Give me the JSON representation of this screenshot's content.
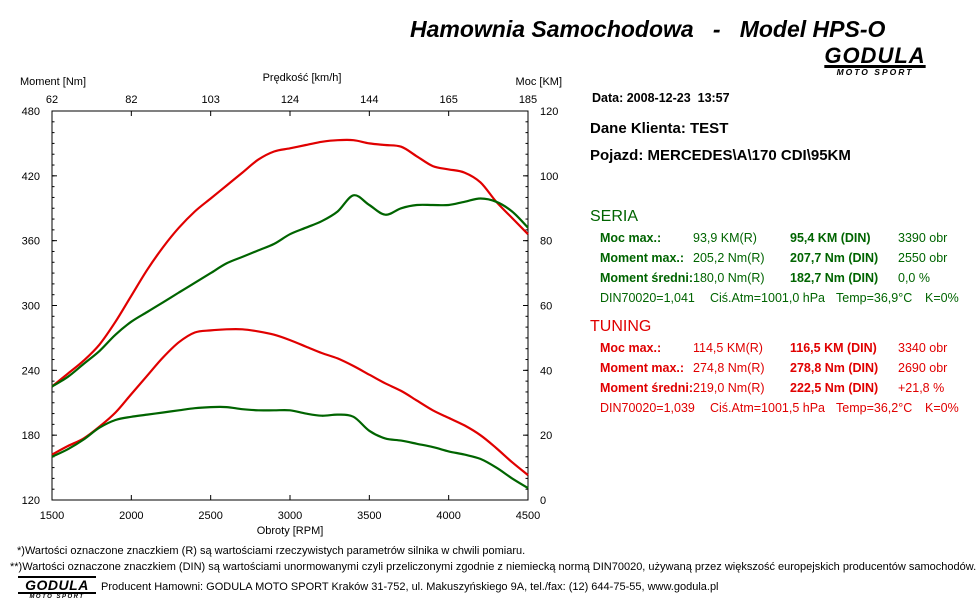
{
  "header": {
    "title": "Hamownia Samochodowa   -   Model HPS-O",
    "logo_brand": "GODULA",
    "logo_sub": "MOTO SPORT"
  },
  "info": {
    "date": "Data: 2008-12-23  13:57",
    "client": "Dane Klienta: TEST",
    "vehicle": "Pojazd: MERCEDES\\A\\170 CDI\\95KM"
  },
  "sections": {
    "seria": {
      "title": "SERIA",
      "color": "#006400",
      "rows": [
        {
          "label": "Moc max.:",
          "r": "93,9 KM(R)",
          "din": "95,4 KM (DIN)",
          "rpm": "3390 obr"
        },
        {
          "label": "Moment max.:",
          "r": "205,2 Nm(R)",
          "din": "207,7 Nm (DIN)",
          "rpm": "2550 obr"
        },
        {
          "label": "Moment średni:",
          "r": "180,0 Nm(R)",
          "din": "182,7 Nm (DIN)",
          "rpm": "0,0 %"
        }
      ],
      "conditions": {
        "din": "DIN70020=1,041",
        "atm": "Ciś.Atm=1001,0 hPa",
        "temp": "Temp=36,9°C",
        "k": "K=0%"
      }
    },
    "tuning": {
      "title": "TUNING",
      "color": "#e00000",
      "rows": [
        {
          "label": "Moc max.:",
          "r": "114,5 KM(R)",
          "din": "116,5 KM (DIN)",
          "rpm": "3340 obr"
        },
        {
          "label": "Moment max.:",
          "r": "274,8 Nm(R)",
          "din": "278,8 Nm (DIN)",
          "rpm": "2690 obr"
        },
        {
          "label": "Moment średni:",
          "r": "219,0 Nm(R)",
          "din": "222,5 Nm (DIN)",
          "rpm": "+21,8 %"
        }
      ],
      "conditions": {
        "din": "DIN70020=1,039",
        "atm": "Ciś.Atm=1001,5 hPa",
        "temp": "Temp=36,2°C",
        "k": "K=0%"
      }
    }
  },
  "footer": {
    "note1": "*)Wartości oznaczone znaczkiem (R) są wartościami rzeczywistych parametrów silnika w chwili pomiaru.",
    "note2": "**)Wartości oznaczone znaczkiem (DIN) są wartościami unormowanymi czyli przeliczonymi zgodnie z niemiecką normą DIN70020, używaną przez większość europejskich producentów samochodów.",
    "producer": "Producent Hamowni: GODULA MOTO SPORT Kraków 31-752, ul. Makuszyńskiego 9A, tel./fax: (12) 644-75-55, www.godula.pl",
    "logo_brand": "GODULA",
    "logo_sub": "MOTO SPORT"
  },
  "chart_data": {
    "type": "line",
    "xlabel": "Obroty [RPM]",
    "top_axis_label": "Prędkość [km/h]",
    "y_left_label": "Moment [Nm]",
    "y_right_label": "Moc [KM]",
    "xlim": [
      1500,
      4500
    ],
    "ylim_left": [
      120,
      480
    ],
    "ylim_right": [
      0,
      120
    ],
    "x_ticks": [
      1500,
      2000,
      2500,
      3000,
      3500,
      4000,
      4500
    ],
    "y_left_ticks": [
      120,
      180,
      240,
      300,
      360,
      420,
      480
    ],
    "y_right_ticks": [
      0,
      20,
      40,
      60,
      80,
      100,
      120
    ],
    "top_ticks": [
      "62",
      "82",
      "103",
      "124",
      "144",
      "165",
      "185"
    ],
    "grid": false,
    "series": [
      {
        "name": "TUNING Moc",
        "color": "#e00000",
        "axis": "right",
        "x": [
          1500,
          1600,
          1700,
          1800,
          1900,
          2000,
          2100,
          2200,
          2300,
          2400,
          2500,
          2600,
          2700,
          2800,
          2900,
          3000,
          3100,
          3200,
          3300,
          3400,
          3500,
          3600,
          3700,
          3800,
          3900,
          4000,
          4100,
          4200,
          4300,
          4400,
          4500
        ],
        "y": [
          35,
          39,
          43,
          48,
          55,
          63,
          71,
          78,
          84,
          89,
          93,
          97,
          101,
          105,
          107.5,
          108.5,
          109.5,
          110.5,
          111,
          111,
          110,
          109.5,
          109,
          106,
          103,
          102,
          101,
          98,
          92,
          87,
          82
        ]
      },
      {
        "name": "SERIA Moc",
        "color": "#006400",
        "axis": "right",
        "x": [
          1500,
          1600,
          1700,
          1800,
          1900,
          2000,
          2100,
          2200,
          2300,
          2400,
          2500,
          2600,
          2700,
          2800,
          2900,
          3000,
          3100,
          3200,
          3300,
          3400,
          3500,
          3600,
          3700,
          3800,
          3900,
          4000,
          4100,
          4200,
          4300,
          4400,
          4500
        ],
        "y": [
          35,
          38,
          42,
          46,
          51,
          55,
          58,
          61,
          64,
          67,
          70,
          73,
          75,
          77,
          79,
          82,
          84,
          86,
          89,
          94,
          91,
          88,
          90,
          91,
          91,
          91,
          92,
          93,
          92,
          89,
          84
        ]
      },
      {
        "name": "TUNING Moment",
        "color": "#e00000",
        "axis": "left",
        "x": [
          1500,
          1600,
          1700,
          1800,
          1900,
          2000,
          2100,
          2200,
          2300,
          2400,
          2500,
          2600,
          2700,
          2800,
          2900,
          3000,
          3100,
          3200,
          3300,
          3400,
          3500,
          3600,
          3700,
          3800,
          3900,
          4000,
          4100,
          4200,
          4300,
          4400,
          4500
        ],
        "y": [
          162,
          170,
          177,
          188,
          201,
          218,
          235,
          252,
          266,
          275,
          277,
          278,
          278,
          276,
          273,
          268,
          262,
          256,
          251,
          244,
          236,
          228,
          221,
          212,
          203,
          196,
          189,
          180,
          168,
          155,
          143
        ]
      },
      {
        "name": "SERIA Moment",
        "color": "#006400",
        "axis": "left",
        "x": [
          1500,
          1600,
          1700,
          1800,
          1900,
          2000,
          2100,
          2200,
          2300,
          2400,
          2500,
          2600,
          2700,
          2800,
          2900,
          3000,
          3100,
          3200,
          3300,
          3400,
          3500,
          3600,
          3700,
          3800,
          3900,
          4000,
          4100,
          4200,
          4300,
          4400,
          4500
        ],
        "y": [
          160,
          167,
          176,
          187,
          194,
          197,
          199,
          201,
          203,
          205,
          206,
          206,
          204,
          203,
          203,
          203,
          200,
          198,
          199,
          197,
          184,
          177,
          175,
          172,
          169,
          165,
          162,
          158,
          150,
          140,
          131
        ]
      }
    ]
  }
}
